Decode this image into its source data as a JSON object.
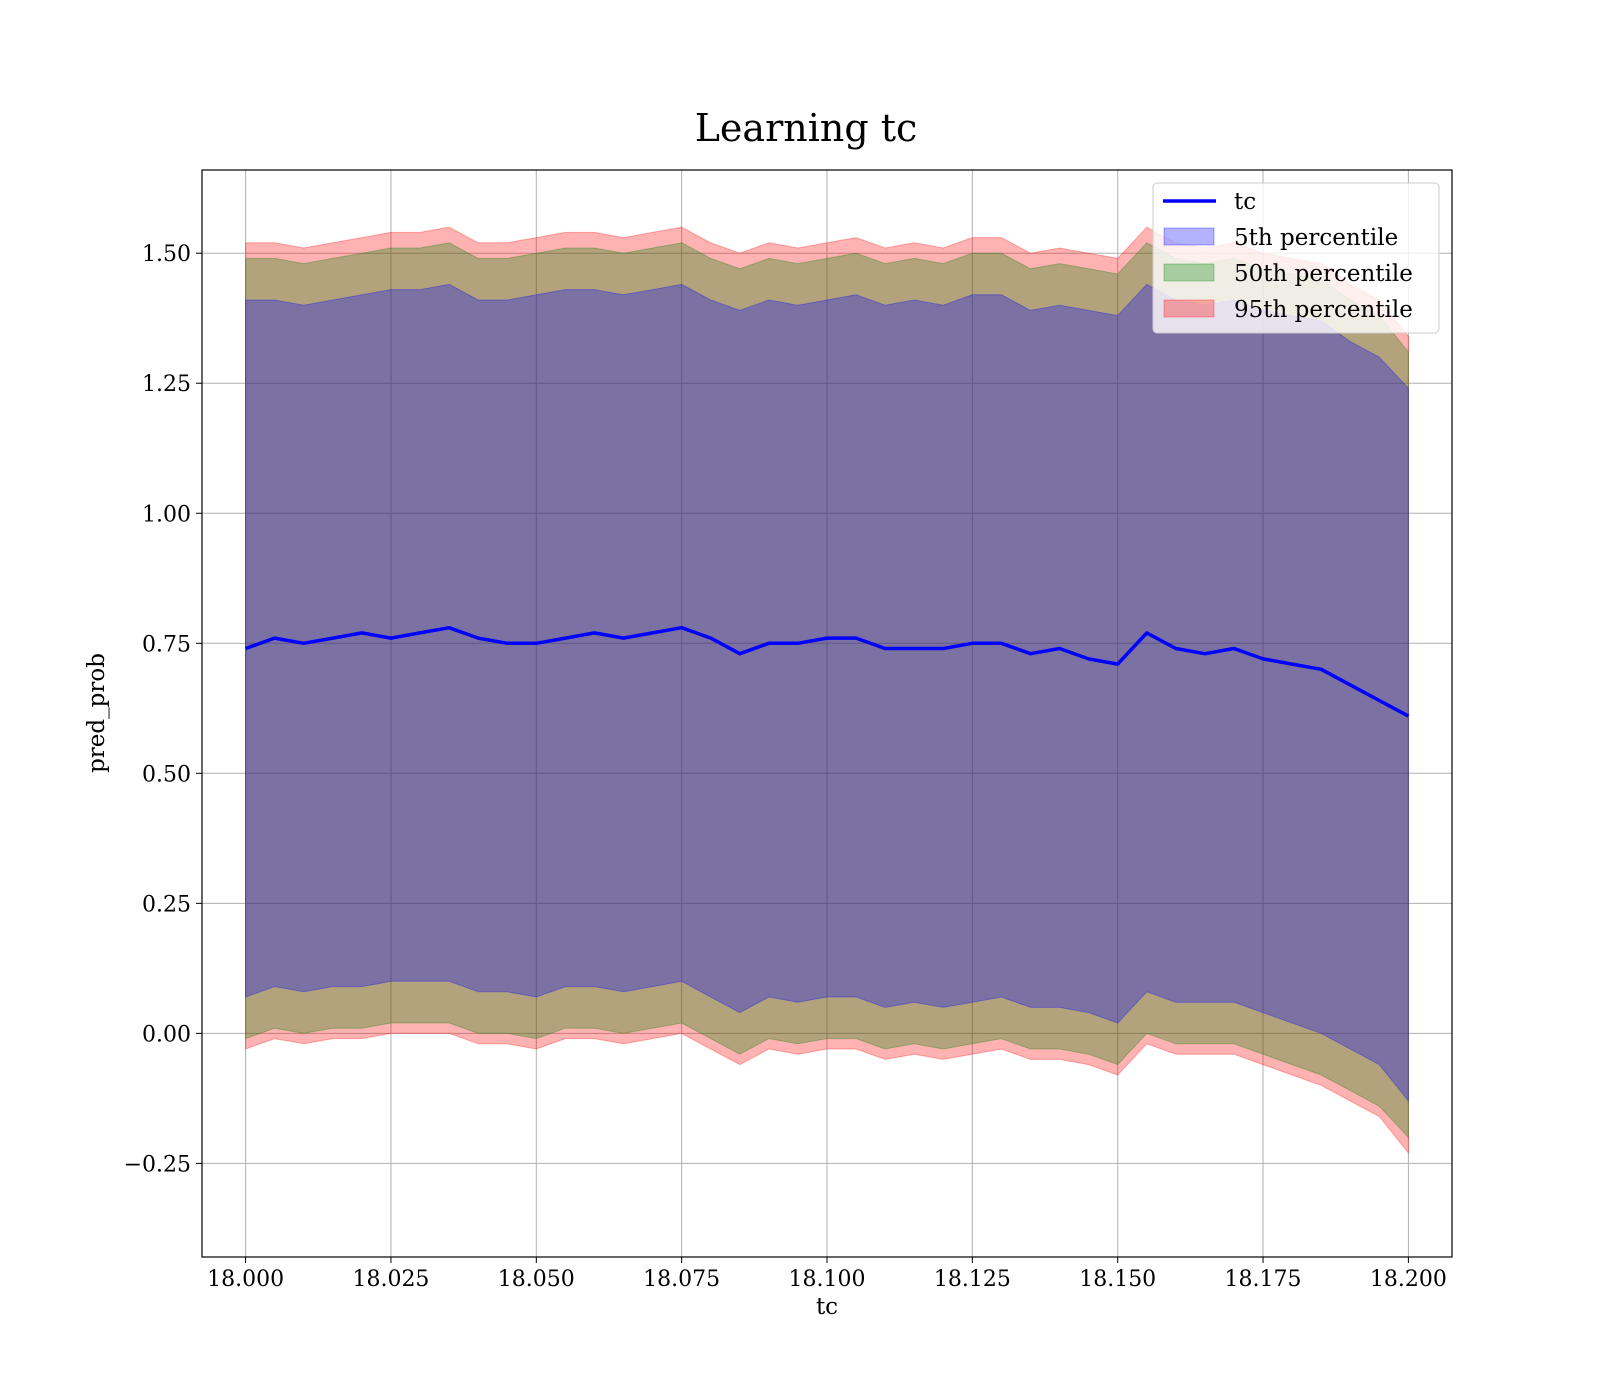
{
  "chart_data": {
    "type": "area",
    "title": "Learning tc",
    "xlabel": "tc",
    "ylabel": "pred_prob",
    "xlim": [
      17.9925,
      18.2075
    ],
    "ylim": [
      -0.43,
      1.66
    ],
    "grid": true,
    "legend_position": "top-right",
    "x_ticks": [
      18.0,
      18.025,
      18.05,
      18.075,
      18.1,
      18.125,
      18.15,
      18.175,
      18.2
    ],
    "x_tick_labels": [
      "18.000",
      "18.025",
      "18.050",
      "18.075",
      "18.100",
      "18.125",
      "18.150",
      "18.175",
      "18.200"
    ],
    "y_ticks": [
      -0.25,
      0.0,
      0.25,
      0.5,
      0.75,
      1.0,
      1.25,
      1.5
    ],
    "y_tick_labels": [
      "−0.25",
      "0.00",
      "0.25",
      "0.50",
      "0.75",
      "1.00",
      "1.25",
      "1.50"
    ],
    "legend": [
      "tc",
      "5th percentile",
      "50th percentile",
      "95th percentile"
    ],
    "colors": {
      "line": "#0000ff",
      "band_5th": "#0000ff",
      "band_50th": "#008000",
      "band_95th": "#ff0000"
    },
    "x": [
      18.0,
      18.005,
      18.01,
      18.015,
      18.02,
      18.025,
      18.03,
      18.035,
      18.04,
      18.045,
      18.05,
      18.055,
      18.06,
      18.065,
      18.07,
      18.075,
      18.08,
      18.085,
      18.09,
      18.095,
      18.1,
      18.105,
      18.11,
      18.115,
      18.12,
      18.125,
      18.13,
      18.135,
      18.14,
      18.145,
      18.15,
      18.155,
      18.16,
      18.165,
      18.17,
      18.175,
      18.18,
      18.185,
      18.19,
      18.195,
      18.2
    ],
    "series": [
      {
        "name": "tc",
        "role": "line",
        "values": [
          0.74,
          0.76,
          0.75,
          0.76,
          0.77,
          0.76,
          0.77,
          0.78,
          0.76,
          0.75,
          0.75,
          0.76,
          0.77,
          0.76,
          0.77,
          0.78,
          0.76,
          0.73,
          0.75,
          0.75,
          0.76,
          0.76,
          0.74,
          0.74,
          0.74,
          0.75,
          0.75,
          0.73,
          0.74,
          0.72,
          0.71,
          0.77,
          0.74,
          0.73,
          0.74,
          0.72,
          0.71,
          0.7,
          0.67,
          0.64,
          0.61
        ]
      },
      {
        "name": "5th percentile",
        "role": "band",
        "lower": [
          0.07,
          0.09,
          0.08,
          0.09,
          0.09,
          0.1,
          0.1,
          0.1,
          0.08,
          0.08,
          0.07,
          0.09,
          0.09,
          0.08,
          0.09,
          0.1,
          0.07,
          0.04,
          0.07,
          0.06,
          0.07,
          0.07,
          0.05,
          0.06,
          0.05,
          0.06,
          0.07,
          0.05,
          0.05,
          0.04,
          0.02,
          0.08,
          0.06,
          0.06,
          0.06,
          0.04,
          0.02,
          0.0,
          -0.03,
          -0.06,
          -0.13
        ],
        "upper": [
          1.41,
          1.41,
          1.4,
          1.41,
          1.42,
          1.43,
          1.43,
          1.44,
          1.41,
          1.41,
          1.42,
          1.43,
          1.43,
          1.42,
          1.43,
          1.44,
          1.41,
          1.39,
          1.41,
          1.4,
          1.41,
          1.42,
          1.4,
          1.41,
          1.4,
          1.42,
          1.42,
          1.39,
          1.4,
          1.39,
          1.38,
          1.44,
          1.41,
          1.4,
          1.41,
          1.39,
          1.38,
          1.37,
          1.33,
          1.3,
          1.24
        ]
      },
      {
        "name": "50th percentile",
        "role": "band",
        "lower": [
          -0.01,
          0.01,
          0.0,
          0.01,
          0.01,
          0.02,
          0.02,
          0.02,
          0.0,
          0.0,
          -0.01,
          0.01,
          0.01,
          0.0,
          0.01,
          0.02,
          -0.01,
          -0.04,
          -0.01,
          -0.02,
          -0.01,
          -0.01,
          -0.03,
          -0.02,
          -0.03,
          -0.02,
          -0.01,
          -0.03,
          -0.03,
          -0.04,
          -0.06,
          0.0,
          -0.02,
          -0.02,
          -0.02,
          -0.04,
          -0.06,
          -0.08,
          -0.11,
          -0.14,
          -0.2
        ],
        "upper": [
          1.49,
          1.49,
          1.48,
          1.49,
          1.5,
          1.51,
          1.51,
          1.52,
          1.49,
          1.49,
          1.5,
          1.51,
          1.51,
          1.5,
          1.51,
          1.52,
          1.49,
          1.47,
          1.49,
          1.48,
          1.49,
          1.5,
          1.48,
          1.49,
          1.48,
          1.5,
          1.5,
          1.47,
          1.48,
          1.47,
          1.46,
          1.52,
          1.49,
          1.48,
          1.49,
          1.47,
          1.46,
          1.45,
          1.41,
          1.38,
          1.31
        ]
      },
      {
        "name": "95th percentile",
        "role": "band",
        "lower": [
          -0.03,
          -0.01,
          -0.02,
          -0.01,
          -0.01,
          0.0,
          0.0,
          0.0,
          -0.02,
          -0.02,
          -0.03,
          -0.01,
          -0.01,
          -0.02,
          -0.01,
          0.0,
          -0.03,
          -0.06,
          -0.03,
          -0.04,
          -0.03,
          -0.03,
          -0.05,
          -0.04,
          -0.05,
          -0.04,
          -0.03,
          -0.05,
          -0.05,
          -0.06,
          -0.08,
          -0.02,
          -0.04,
          -0.04,
          -0.04,
          -0.06,
          -0.08,
          -0.1,
          -0.13,
          -0.16,
          -0.23
        ],
        "upper": [
          1.52,
          1.52,
          1.51,
          1.52,
          1.53,
          1.54,
          1.54,
          1.55,
          1.52,
          1.52,
          1.53,
          1.54,
          1.54,
          1.53,
          1.54,
          1.55,
          1.52,
          1.5,
          1.52,
          1.51,
          1.52,
          1.53,
          1.51,
          1.52,
          1.51,
          1.53,
          1.53,
          1.5,
          1.51,
          1.5,
          1.49,
          1.55,
          1.52,
          1.51,
          1.52,
          1.5,
          1.49,
          1.48,
          1.44,
          1.41,
          1.34
        ]
      }
    ]
  }
}
